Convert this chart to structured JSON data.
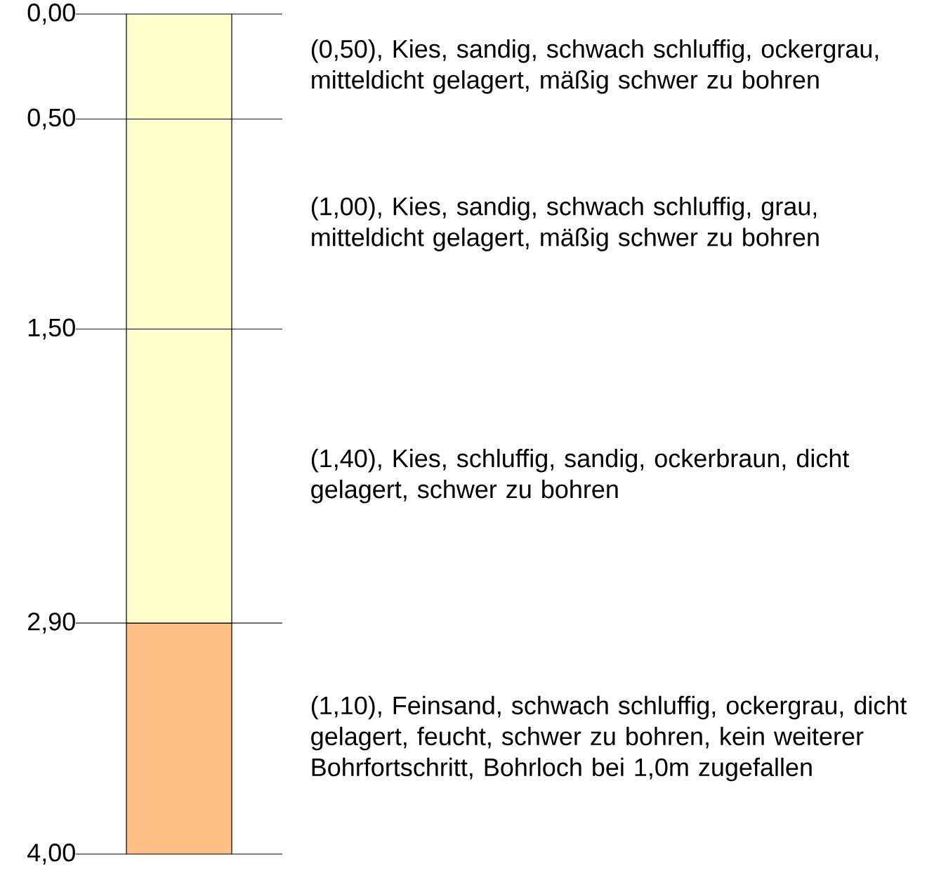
{
  "chart_data": {
    "type": "bar",
    "stacked": true,
    "categories": [
      null
    ],
    "series": [
      {
        "color": "#ffffcc",
        "values": [
          0.5
        ]
      },
      {
        "color": "#ffffcc",
        "values": [
          1.0
        ]
      },
      {
        "color": "#ffffcc",
        "values": [
          1.4
        ]
      },
      {
        "color": "#fdbf86",
        "values": [
          1.1
        ]
      }
    ],
    "ylim": [
      4,
      0
    ],
    "yticks": [
      {
        "value": 0,
        "label": "0,00"
      },
      {
        "value": 0.5,
        "label": "0,50"
      },
      {
        "value": 1.5,
        "label": "1,50"
      },
      {
        "value": 2.9,
        "label": "2,90"
      },
      {
        "value": 4,
        "label": "4,00"
      }
    ],
    "annotations": [
      "(0,50), Kies, sandig, schwach schluffig, ockergrau, mitteldicht gelagert, mäßig schwer zu bohren",
      "(1,00), Kies, sandig, schwach schluffig, grau, mitteldicht gelagert, mäßig schwer zu bohren",
      "(1,40), Kies, schluffig, sandig, ockerbraun, dicht gelagert, schwer zu bohren",
      "(1,10), Feinsand, schwach schluffig, ockergrau, dicht gelagert, feucht, schwer zu bohren, kein weiterer Bohrfortschritt, Bohrloch bei 1,0m zugefallen"
    ]
  }
}
